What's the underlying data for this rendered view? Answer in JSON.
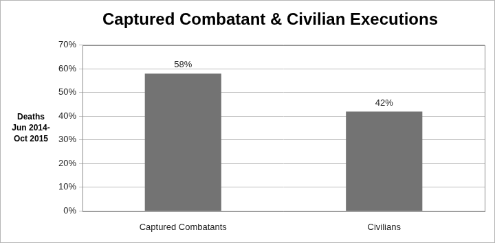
{
  "chart_data": {
    "type": "bar",
    "title": "Captured Combatant & Civilian Executions",
    "y_label": "Deaths\nJun 2014-\nOct 2015",
    "categories": [
      "Captured Combatants",
      "Civilians"
    ],
    "values": [
      58,
      42
    ],
    "value_labels": [
      "58%",
      "42%"
    ],
    "color": "#737373",
    "ylim": [
      0,
      70
    ],
    "yticks": [
      {
        "value": 0,
        "label": "0%"
      },
      {
        "value": 10,
        "label": "10%"
      },
      {
        "value": 20,
        "label": "20%"
      },
      {
        "value": 30,
        "label": "30%"
      },
      {
        "value": 40,
        "label": "40%"
      },
      {
        "value": 50,
        "label": "50%"
      },
      {
        "value": 60,
        "label": "60%"
      },
      {
        "value": 70,
        "label": "70%"
      }
    ],
    "grid": true,
    "data_labels": true
  }
}
